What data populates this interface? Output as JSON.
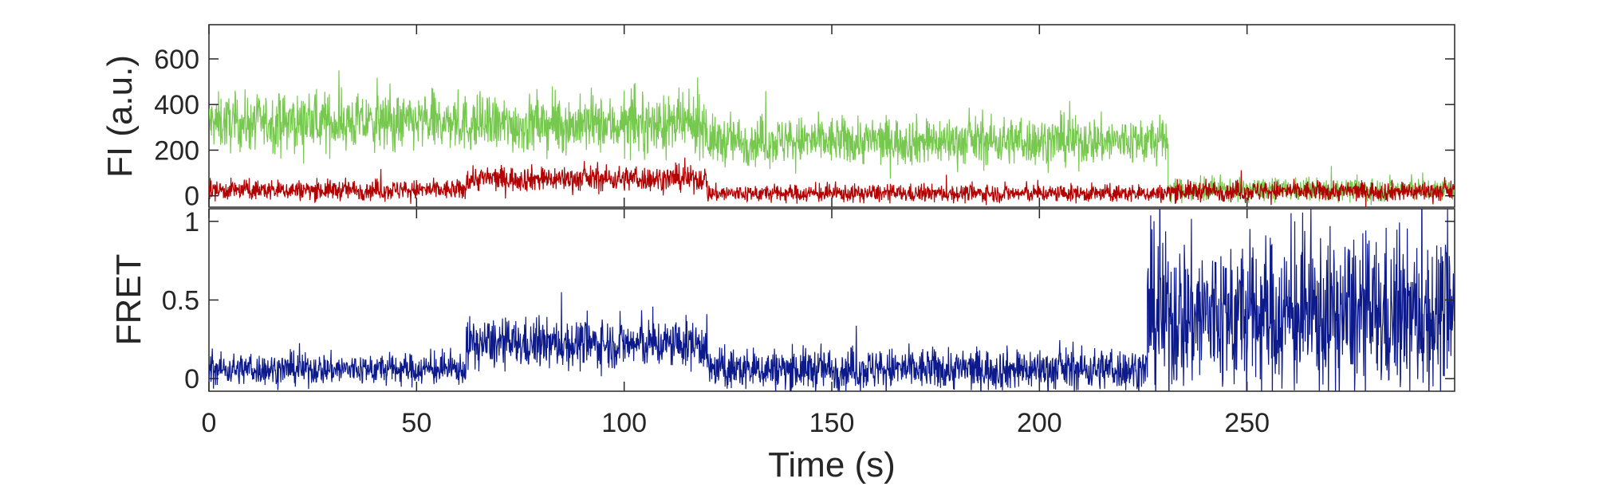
{
  "chart_data": [
    {
      "type": "line",
      "panel": "top",
      "ylabel": "FI (a.u.)",
      "xlim": [
        0,
        300
      ],
      "ylim": [
        -50,
        750
      ],
      "yticks": [
        0,
        200,
        400,
        600
      ],
      "ytick_labels": [
        "0",
        "200",
        "400",
        "600"
      ],
      "grid": false,
      "legend": "none",
      "series": [
        {
          "color": "#77c84e",
          "segments": [
            {
              "x": [
                0,
                62
              ],
              "mean": 320,
              "noise": 110
            },
            {
              "x": [
                62,
                120
              ],
              "mean": 310,
              "noise": 110
            },
            {
              "x": [
                120,
                231
              ],
              "mean": 240,
              "noise": 95
            },
            {
              "x": [
                231,
                300
              ],
              "mean": 25,
              "noise": 45
            }
          ]
        },
        {
          "color": "#b30000",
          "segments": [
            {
              "x": [
                0,
                62
              ],
              "mean": 25,
              "noise": 40
            },
            {
              "x": [
                62,
                120
              ],
              "mean": 75,
              "noise": 50
            },
            {
              "x": [
                120,
                231
              ],
              "mean": 10,
              "noise": 35
            },
            {
              "x": [
                231,
                300
              ],
              "mean": 20,
              "noise": 40
            }
          ]
        }
      ]
    },
    {
      "type": "line",
      "panel": "bottom",
      "ylabel": "FRET",
      "xlabel": "Time (s)",
      "xlim": [
        0,
        300
      ],
      "ylim": [
        -0.08,
        1.08
      ],
      "xticks": [
        0,
        50,
        100,
        150,
        200,
        250
      ],
      "xtick_labels": [
        "0",
        "50",
        "100",
        "150",
        "200",
        "250"
      ],
      "yticks": [
        0,
        0.5,
        1
      ],
      "ytick_labels": [
        "0",
        "0.5",
        "1"
      ],
      "grid": false,
      "legend": "none",
      "series": [
        {
          "color": "#0d1a8c",
          "segments": [
            {
              "x": [
                0,
                62
              ],
              "mean": 0.06,
              "noise": 0.09
            },
            {
              "x": [
                62,
                120
              ],
              "mean": 0.22,
              "noise": 0.14
            },
            {
              "x": [
                120,
                226
              ],
              "mean": 0.06,
              "noise": 0.12
            },
            {
              "x": [
                226,
                300
              ],
              "mean": 0.4,
              "noise": 0.45
            }
          ]
        }
      ]
    }
  ]
}
